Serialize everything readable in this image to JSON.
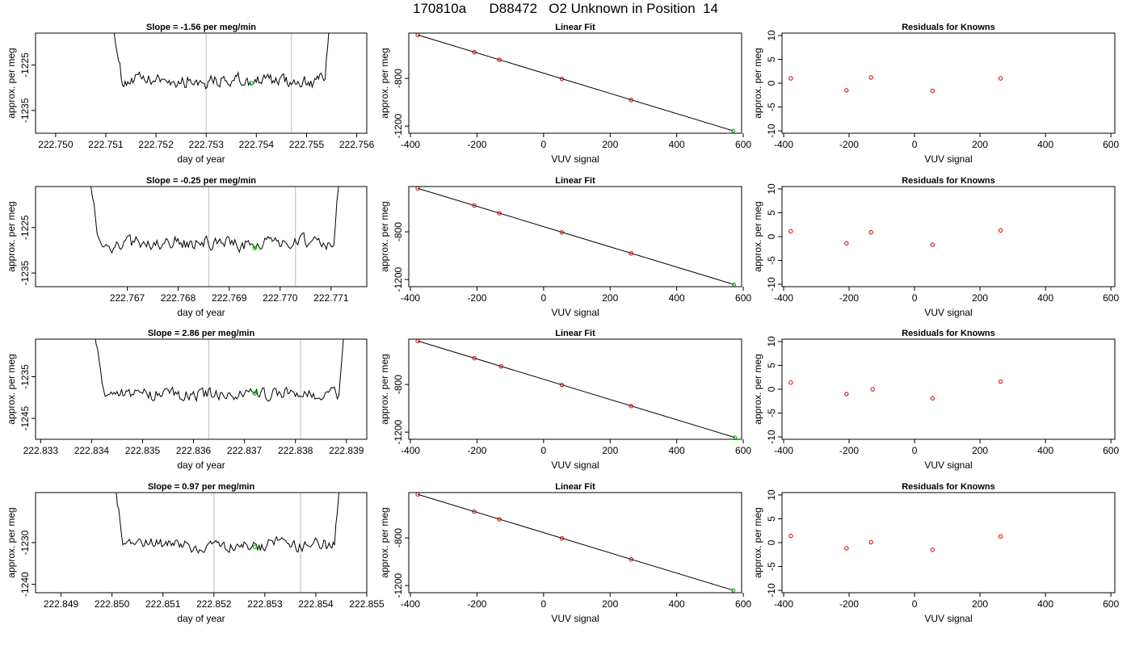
{
  "header": {
    "title": "170810a      D88472   O2 Unknown in Position  14"
  },
  "labels": {
    "x_time": "day of year",
    "y_meg": "approx. per meg",
    "x_vuv": "VUV signal",
    "fit_title": "Linear Fit",
    "resid_title": "Residuals for Knowns"
  },
  "colors": {
    "line": "#000000",
    "known_points": "#d00000",
    "unknown_point": "#00c000",
    "marker_lines": "#c8c8c8"
  },
  "chart_data": [
    {
      "row": 1,
      "type": "line",
      "title": "Slope =  -1.56  per meg/min",
      "xlabel": "day of year",
      "ylabel": "approx. per meg",
      "xlim": [
        222.7496,
        222.7562
      ],
      "ylim": [
        -1240,
        -1218
      ],
      "xticks": [
        "222.750",
        "222.751",
        "222.752",
        "222.753",
        "222.754",
        "222.755",
        "222.756"
      ],
      "yticks": [
        "-1225",
        "-1235"
      ],
      "trace_start": 222.7511,
      "trace_end": 222.7555,
      "level": -1228.5,
      "noise": 2.2,
      "vlines": [
        222.753,
        222.7547
      ],
      "unknown_point": [
        222.7539,
        -1229
      ]
    },
    {
      "row": 2,
      "type": "line",
      "title": "Slope =  -0.25  per meg/min",
      "xlabel": "day of year",
      "ylabel": "approx. per meg",
      "xlim": [
        222.7652,
        222.7717
      ],
      "ylim": [
        -1238,
        -1216
      ],
      "xticks": [
        "222.767",
        "222.768",
        "222.769",
        "222.770",
        "222.771"
      ],
      "yticks": [
        "-1225",
        "-1235"
      ],
      "trace_start": 222.7662,
      "trace_end": 222.7712,
      "level": -1228.5,
      "noise": 2.3,
      "vlines": [
        222.7686,
        222.7703
      ],
      "unknown_point": [
        222.7695,
        -1229.5
      ]
    },
    {
      "row": 3,
      "type": "line",
      "title": "Slope =  2.86  per meg/min",
      "xlabel": "day of year",
      "ylabel": "approx. per meg",
      "xlim": [
        222.8329,
        222.8394
      ],
      "ylim": [
        -1250,
        -1226
      ],
      "xticks": [
        "222.833",
        "222.834",
        "222.835",
        "222.836",
        "222.837",
        "222.838",
        "222.839"
      ],
      "yticks": [
        "-1235",
        "-1245"
      ],
      "trace_start": 222.834,
      "trace_end": 222.839,
      "level": -1239,
      "noise": 2.3,
      "vlines": [
        222.8363,
        222.8381
      ],
      "unknown_point": [
        222.8372,
        -1239
      ]
    },
    {
      "row": 4,
      "type": "line",
      "title": "Slope =  0.97  per meg/min",
      "xlabel": "day of year",
      "ylabel": "approx. per meg",
      "xlim": [
        222.8485,
        222.855
      ],
      "ylim": [
        -1242,
        -1218
      ],
      "xticks": [
        "222.849",
        "222.850",
        "222.851",
        "222.852",
        "222.853",
        "222.854",
        "222.855"
      ],
      "yticks": [
        "-1230",
        "-1240"
      ],
      "trace_start": 222.85,
      "trace_end": 222.8545,
      "level": -1230.5,
      "noise": 2.2,
      "vlines": [
        222.852,
        222.8537
      ],
      "unknown_point": [
        222.8528,
        -1231
      ]
    },
    {
      "row": 1,
      "type": "scatter",
      "title": "Linear Fit",
      "xlabel": "VUV signal",
      "ylabel": "approx. per meg",
      "xlim": [
        -405,
        595
      ],
      "ylim": [
        -1260,
        -420
      ],
      "xticks": [
        "-400",
        "-200",
        "0",
        "200",
        "400",
        "600"
      ],
      "yticks": [
        "-800",
        "-1200"
      ],
      "fit_line": [
        [
          -378,
          -435
        ],
        [
          570,
          -1240
        ]
      ],
      "knowns": [
        [
          -378,
          -435
        ],
        [
          -208,
          -580
        ],
        [
          -133,
          -643
        ],
        [
          55,
          -804
        ],
        [
          263,
          -981
        ]
      ],
      "unknown": [
        570,
        -1240
      ]
    },
    {
      "row": 2,
      "type": "scatter",
      "title": "Linear Fit",
      "xlabel": "VUV signal",
      "ylabel": "approx. per meg",
      "xlim": [
        -405,
        595
      ],
      "ylim": [
        -1260,
        -420
      ],
      "xticks": [
        "-400",
        "-200",
        "0",
        "200",
        "400",
        "600"
      ],
      "yticks": [
        "-800",
        "-1200"
      ],
      "fit_line": [
        [
          -378,
          -435
        ],
        [
          572,
          -1242
        ]
      ],
      "knowns": [
        [
          -378,
          -435
        ],
        [
          -208,
          -580
        ],
        [
          -133,
          -644
        ],
        [
          55,
          -804
        ],
        [
          263,
          -981
        ]
      ],
      "unknown": [
        572,
        -1242
      ]
    },
    {
      "row": 3,
      "type": "scatter",
      "title": "Linear Fit",
      "xlabel": "VUV signal",
      "ylabel": "approx. per meg",
      "xlim": [
        -405,
        595
      ],
      "ylim": [
        -1260,
        -420
      ],
      "xticks": [
        "-400",
        "-200",
        "0",
        "200",
        "400",
        "600"
      ],
      "yticks": [
        "-800",
        "-1200"
      ],
      "fit_line": [
        [
          -378,
          -435
        ],
        [
          575,
          -1245
        ]
      ],
      "knowns": [
        [
          -378,
          -435
        ],
        [
          -208,
          -580
        ],
        [
          -128,
          -648
        ],
        [
          55,
          -804
        ],
        [
          263,
          -981
        ]
      ],
      "unknown": [
        575,
        -1245
      ]
    },
    {
      "row": 4,
      "type": "scatter",
      "title": "Linear Fit",
      "xlabel": "VUV signal",
      "ylabel": "approx. per meg",
      "xlim": [
        -405,
        595
      ],
      "ylim": [
        -1260,
        -420
      ],
      "xticks": [
        "-400",
        "-200",
        "0",
        "200",
        "400",
        "600"
      ],
      "yticks": [
        "-800",
        "-1200"
      ],
      "fit_line": [
        [
          -378,
          -435
        ],
        [
          570,
          -1240
        ]
      ],
      "knowns": [
        [
          -378,
          -435
        ],
        [
          -208,
          -580
        ],
        [
          -133,
          -644
        ],
        [
          55,
          -804
        ],
        [
          263,
          -981
        ]
      ],
      "unknown": [
        570,
        -1240
      ]
    },
    {
      "row": 1,
      "type": "scatter",
      "title": "Residuals for Knowns",
      "xlabel": "VUV signal",
      "ylabel": "approx. per meg",
      "xlim": [
        -405,
        612
      ],
      "ylim": [
        -10.5,
        10.5
      ],
      "xticks": [
        "-400",
        "-200",
        "0",
        "200",
        "400",
        "600"
      ],
      "yticks": [
        "-10",
        "-5",
        "0",
        "5",
        "10"
      ],
      "points": [
        [
          -378,
          1.0
        ],
        [
          -208,
          -1.5
        ],
        [
          -133,
          1.2
        ],
        [
          55,
          -1.6
        ],
        [
          263,
          1.0
        ]
      ]
    },
    {
      "row": 2,
      "type": "scatter",
      "title": "Residuals for Knowns",
      "xlabel": "VUV signal",
      "ylabel": "approx. per meg",
      "xlim": [
        -405,
        612
      ],
      "ylim": [
        -10.5,
        10.5
      ],
      "xticks": [
        "-400",
        "-200",
        "0",
        "200",
        "400",
        "600"
      ],
      "yticks": [
        "-10",
        "-5",
        "0",
        "5",
        "10"
      ],
      "points": [
        [
          -378,
          1.1
        ],
        [
          -208,
          -1.4
        ],
        [
          -133,
          0.9
        ],
        [
          55,
          -1.7
        ],
        [
          263,
          1.3
        ]
      ]
    },
    {
      "row": 3,
      "type": "scatter",
      "title": "Residuals for Knowns",
      "xlabel": "VUV signal",
      "ylabel": "approx. per meg",
      "xlim": [
        -405,
        612
      ],
      "ylim": [
        -10.5,
        10.5
      ],
      "xticks": [
        "-400",
        "-200",
        "0",
        "200",
        "400",
        "600"
      ],
      "yticks": [
        "-10",
        "-5",
        "0",
        "5",
        "10"
      ],
      "points": [
        [
          -378,
          1.4
        ],
        [
          -208,
          -1.0
        ],
        [
          -128,
          0.0
        ],
        [
          55,
          -1.9
        ],
        [
          263,
          1.6
        ]
      ]
    },
    {
      "row": 4,
      "type": "scatter",
      "title": "Residuals for Knowns",
      "xlabel": "VUV signal",
      "ylabel": "approx. per meg",
      "xlim": [
        -405,
        612
      ],
      "ylim": [
        -10.5,
        10.5
      ],
      "xticks": [
        "-400",
        "-200",
        "0",
        "200",
        "400",
        "600"
      ],
      "yticks": [
        "-10",
        "-5",
        "0",
        "5",
        "10"
      ],
      "points": [
        [
          -378,
          1.4
        ],
        [
          -208,
          -1.2
        ],
        [
          -133,
          0.1
        ],
        [
          55,
          -1.5
        ],
        [
          263,
          1.3
        ]
      ]
    }
  ]
}
